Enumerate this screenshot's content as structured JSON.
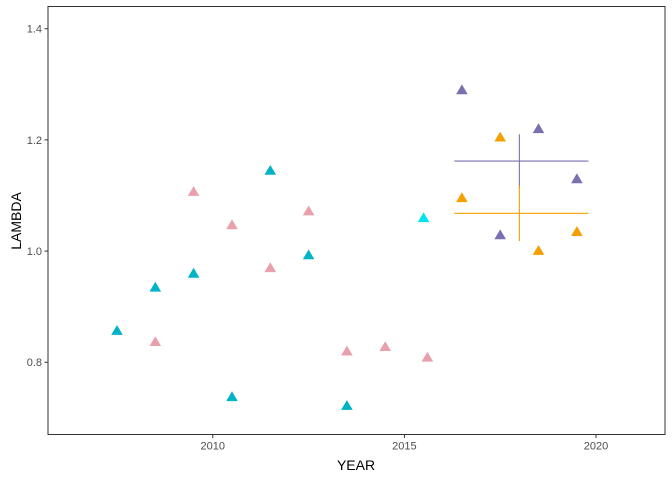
{
  "chart_data": {
    "type": "scatter",
    "xlabel": "YEAR",
    "ylabel": "LAMBDA",
    "xlim": [
      2005.7,
      2021.8
    ],
    "ylim": [
      0.67,
      1.44
    ],
    "x_ticks": [
      2010,
      2015,
      2020
    ],
    "y_ticks": [
      0.8,
      1.0,
      1.2,
      1.4
    ],
    "x_tick_labels": [
      "2010",
      "2015",
      "2020"
    ],
    "y_tick_labels": [
      "0.8",
      "1.0",
      "1.2",
      "1.4"
    ],
    "grid": false,
    "marker": "triangle",
    "series": [
      {
        "color": "#00b3c6",
        "points": [
          {
            "x": 2007.5,
            "y": 0.857
          },
          {
            "x": 2008.5,
            "y": 0.935
          },
          {
            "x": 2009.5,
            "y": 0.96
          },
          {
            "x": 2010.5,
            "y": 0.738
          },
          {
            "x": 2011.5,
            "y": 1.145
          },
          {
            "x": 2012.5,
            "y": 0.993
          },
          {
            "x": 2013.5,
            "y": 0.722
          }
        ]
      },
      {
        "color": "#e8a0ad",
        "points": [
          {
            "x": 2008.5,
            "y": 0.837
          },
          {
            "x": 2009.5,
            "y": 1.107
          },
          {
            "x": 2010.5,
            "y": 1.047
          },
          {
            "x": 2011.5,
            "y": 0.97
          },
          {
            "x": 2012.5,
            "y": 1.072
          },
          {
            "x": 2013.5,
            "y": 0.82
          },
          {
            "x": 2014.5,
            "y": 0.828
          },
          {
            "x": 2015.6,
            "y": 0.809
          }
        ]
      },
      {
        "color": "#00e5ee",
        "points": [
          {
            "x": 2015.5,
            "y": 1.06
          }
        ]
      },
      {
        "color": "#7b6fb0",
        "points": [
          {
            "x": 2016.5,
            "y": 1.29
          },
          {
            "x": 2017.5,
            "y": 1.029
          },
          {
            "x": 2018.5,
            "y": 1.22
          },
          {
            "x": 2019.5,
            "y": 1.13
          }
        ]
      },
      {
        "color": "#f5a000",
        "points": [
          {
            "x": 2016.5,
            "y": 1.096
          },
          {
            "x": 2017.5,
            "y": 1.205
          },
          {
            "x": 2018.5,
            "y": 1.001
          },
          {
            "x": 2019.5,
            "y": 1.035
          }
        ]
      }
    ],
    "crosses": [
      {
        "color": "#7b6fb0",
        "x": 2018.0,
        "y": 1.162,
        "x_range": [
          2016.3,
          2019.8
        ],
        "y_range": [
          1.112,
          1.21
        ]
      },
      {
        "color": "#f5a000",
        "x": 2018.0,
        "y": 1.068,
        "x_range": [
          2016.3,
          2019.8
        ],
        "y_range": [
          1.018,
          1.118
        ]
      }
    ]
  }
}
